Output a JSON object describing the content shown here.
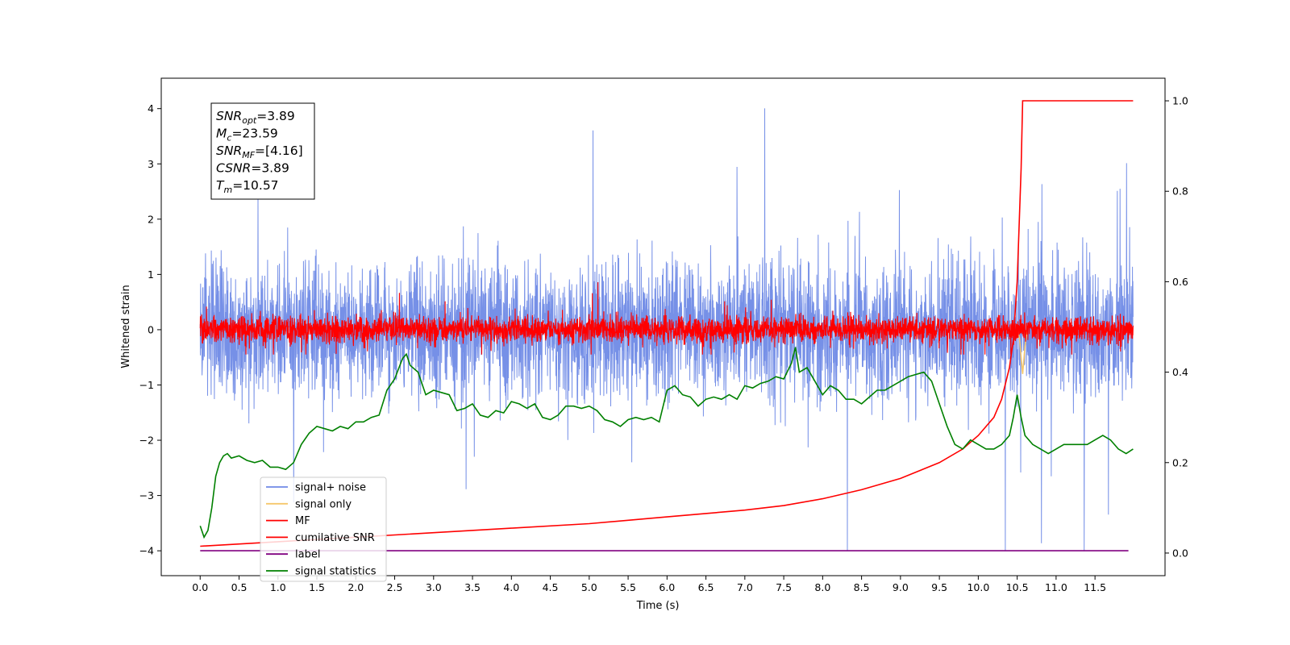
{
  "chart_data": {
    "type": "line",
    "xlabel": "Time (s)",
    "ylabel": "Whitened strain",
    "xlim": [
      -0.5,
      12.4
    ],
    "ylim": [
      -4.45,
      4.55
    ],
    "y2lim": [
      -0.05,
      1.05
    ],
    "x_ticks": [
      "0.0",
      "0.5",
      "1.0",
      "1.5",
      "2.0",
      "2.5",
      "3.0",
      "3.5",
      "4.0",
      "4.5",
      "5.0",
      "5.5",
      "6.0",
      "6.5",
      "7.0",
      "7.5",
      "8.0",
      "8.5",
      "9.0",
      "9.5",
      "10.0",
      "10.5",
      "11.0",
      "11.5"
    ],
    "x_tick_values": [
      0,
      0.5,
      1,
      1.5,
      2,
      2.5,
      3,
      3.5,
      4,
      4.5,
      5,
      5.5,
      6,
      6.5,
      7,
      7.5,
      8,
      8.5,
      9,
      9.5,
      10,
      10.5,
      11,
      11.5
    ],
    "y_ticks": [
      "−4",
      "−3",
      "−2",
      "−1",
      "0",
      "1",
      "2",
      "3",
      "4"
    ],
    "y_tick_values": [
      -4,
      -3,
      -2,
      -1,
      0,
      1,
      2,
      3,
      4
    ],
    "y2_ticks": [
      "0.0",
      "0.2",
      "0.4",
      "0.6",
      "0.8",
      "1.0"
    ],
    "y2_tick_values": [
      0,
      0.2,
      0.4,
      0.6,
      0.8,
      1.0
    ],
    "grid": false,
    "legend_position": "lower-left",
    "legend": [
      {
        "label": "signal+ noise",
        "color": "#6f8ae6"
      },
      {
        "label": "signal only",
        "color": "#f5c76b"
      },
      {
        "label": "MF",
        "color": "#ff0000"
      },
      {
        "label": "cumilative SNR",
        "color": "#ff0000"
      },
      {
        "label": "label",
        "color": "#800080"
      },
      {
        "label": "signal statistics",
        "color": "#008000"
      }
    ],
    "annotation": {
      "lines": [
        {
          "sym": "SNR",
          "sub": "opt",
          "rest": "=3.89"
        },
        {
          "sym": "M",
          "sub": "c",
          "rest": "=23.59"
        },
        {
          "sym": "SNR",
          "sub": "MF",
          "rest": "=[4.16]"
        },
        {
          "sym": "CSNR",
          "sub": "",
          "rest": "=3.89"
        },
        {
          "sym": "T",
          "sub": "m",
          "rest": "=10.57"
        }
      ]
    },
    "series": [
      {
        "name": "signal+ noise",
        "axis": "left",
        "style": "noise",
        "x_range": [
          0,
          11.99
        ],
        "center": 0.0,
        "spread": 1.1,
        "max": 4.17,
        "min": -4.0
      },
      {
        "name": "signal only",
        "axis": "left",
        "x": [
          10.5,
          10.53,
          10.55,
          10.57,
          10.6,
          10.63
        ],
        "y": [
          0,
          -0.15,
          -0.5,
          -0.8,
          -0.3,
          0
        ]
      },
      {
        "name": "MF",
        "axis": "left",
        "style": "noise",
        "x_range": [
          0,
          11.99
        ],
        "center": 0.0,
        "spread": 0.22,
        "max": 0.97,
        "min": -0.45
      },
      {
        "name": "cumilative SNR",
        "axis": "right",
        "x": [
          0.0,
          1.0,
          2.0,
          3.0,
          4.0,
          5.0,
          6.0,
          7.0,
          7.5,
          8.0,
          8.5,
          9.0,
          9.5,
          9.8,
          10.0,
          10.2,
          10.3,
          10.4,
          10.45,
          10.5,
          10.55,
          10.57,
          11.99
        ],
        "y": [
          0.015,
          0.025,
          0.035,
          0.045,
          0.055,
          0.065,
          0.08,
          0.095,
          0.105,
          0.12,
          0.14,
          0.165,
          0.2,
          0.23,
          0.26,
          0.3,
          0.34,
          0.41,
          0.47,
          0.6,
          0.85,
          1.0,
          1.0
        ]
      },
      {
        "name": "label",
        "axis": "left",
        "x": [
          0.0,
          11.93
        ],
        "y": [
          -4.0,
          -4.0
        ]
      },
      {
        "name": "signal statistics",
        "axis": "right",
        "x": [
          0.0,
          0.05,
          0.1,
          0.15,
          0.2,
          0.25,
          0.3,
          0.35,
          0.4,
          0.5,
          0.6,
          0.7,
          0.8,
          0.9,
          1.0,
          1.1,
          1.2,
          1.3,
          1.4,
          1.5,
          1.6,
          1.7,
          1.8,
          1.9,
          2.0,
          2.1,
          2.2,
          2.3,
          2.4,
          2.5,
          2.6,
          2.65,
          2.7,
          2.8,
          2.9,
          3.0,
          3.1,
          3.2,
          3.3,
          3.4,
          3.5,
          3.6,
          3.7,
          3.8,
          3.9,
          4.0,
          4.1,
          4.2,
          4.3,
          4.4,
          4.5,
          4.6,
          4.7,
          4.8,
          4.9,
          5.0,
          5.1,
          5.2,
          5.3,
          5.4,
          5.5,
          5.6,
          5.7,
          5.8,
          5.9,
          6.0,
          6.1,
          6.2,
          6.3,
          6.4,
          6.5,
          6.6,
          6.7,
          6.8,
          6.9,
          7.0,
          7.1,
          7.2,
          7.3,
          7.4,
          7.5,
          7.6,
          7.65,
          7.7,
          7.8,
          7.9,
          8.0,
          8.1,
          8.2,
          8.3,
          8.4,
          8.5,
          8.6,
          8.7,
          8.8,
          8.9,
          9.0,
          9.1,
          9.2,
          9.3,
          9.4,
          9.5,
          9.6,
          9.7,
          9.8,
          9.9,
          10.0,
          10.1,
          10.2,
          10.3,
          10.4,
          10.45,
          10.5,
          10.55,
          10.6,
          10.7,
          10.8,
          10.9,
          11.0,
          11.1,
          11.2,
          11.3,
          11.4,
          11.5,
          11.6,
          11.7,
          11.8,
          11.9,
          11.99
        ],
        "y": [
          0.06,
          0.035,
          0.05,
          0.1,
          0.17,
          0.2,
          0.215,
          0.22,
          0.21,
          0.215,
          0.205,
          0.2,
          0.205,
          0.19,
          0.19,
          0.185,
          0.2,
          0.24,
          0.265,
          0.28,
          0.275,
          0.27,
          0.28,
          0.275,
          0.29,
          0.29,
          0.3,
          0.305,
          0.36,
          0.385,
          0.43,
          0.44,
          0.415,
          0.4,
          0.35,
          0.36,
          0.355,
          0.35,
          0.315,
          0.32,
          0.33,
          0.305,
          0.3,
          0.315,
          0.31,
          0.335,
          0.33,
          0.32,
          0.33,
          0.3,
          0.295,
          0.305,
          0.325,
          0.325,
          0.32,
          0.325,
          0.315,
          0.295,
          0.29,
          0.28,
          0.295,
          0.3,
          0.295,
          0.3,
          0.29,
          0.36,
          0.37,
          0.35,
          0.345,
          0.325,
          0.34,
          0.345,
          0.34,
          0.35,
          0.34,
          0.37,
          0.365,
          0.375,
          0.38,
          0.39,
          0.385,
          0.42,
          0.455,
          0.4,
          0.41,
          0.38,
          0.35,
          0.37,
          0.36,
          0.34,
          0.34,
          0.33,
          0.345,
          0.36,
          0.36,
          0.37,
          0.38,
          0.39,
          0.395,
          0.4,
          0.38,
          0.33,
          0.28,
          0.24,
          0.23,
          0.25,
          0.24,
          0.23,
          0.23,
          0.24,
          0.26,
          0.3,
          0.35,
          0.3,
          0.26,
          0.24,
          0.23,
          0.22,
          0.23,
          0.24,
          0.24,
          0.24,
          0.24,
          0.25,
          0.26,
          0.25,
          0.23,
          0.22,
          0.23
        ]
      }
    ]
  }
}
